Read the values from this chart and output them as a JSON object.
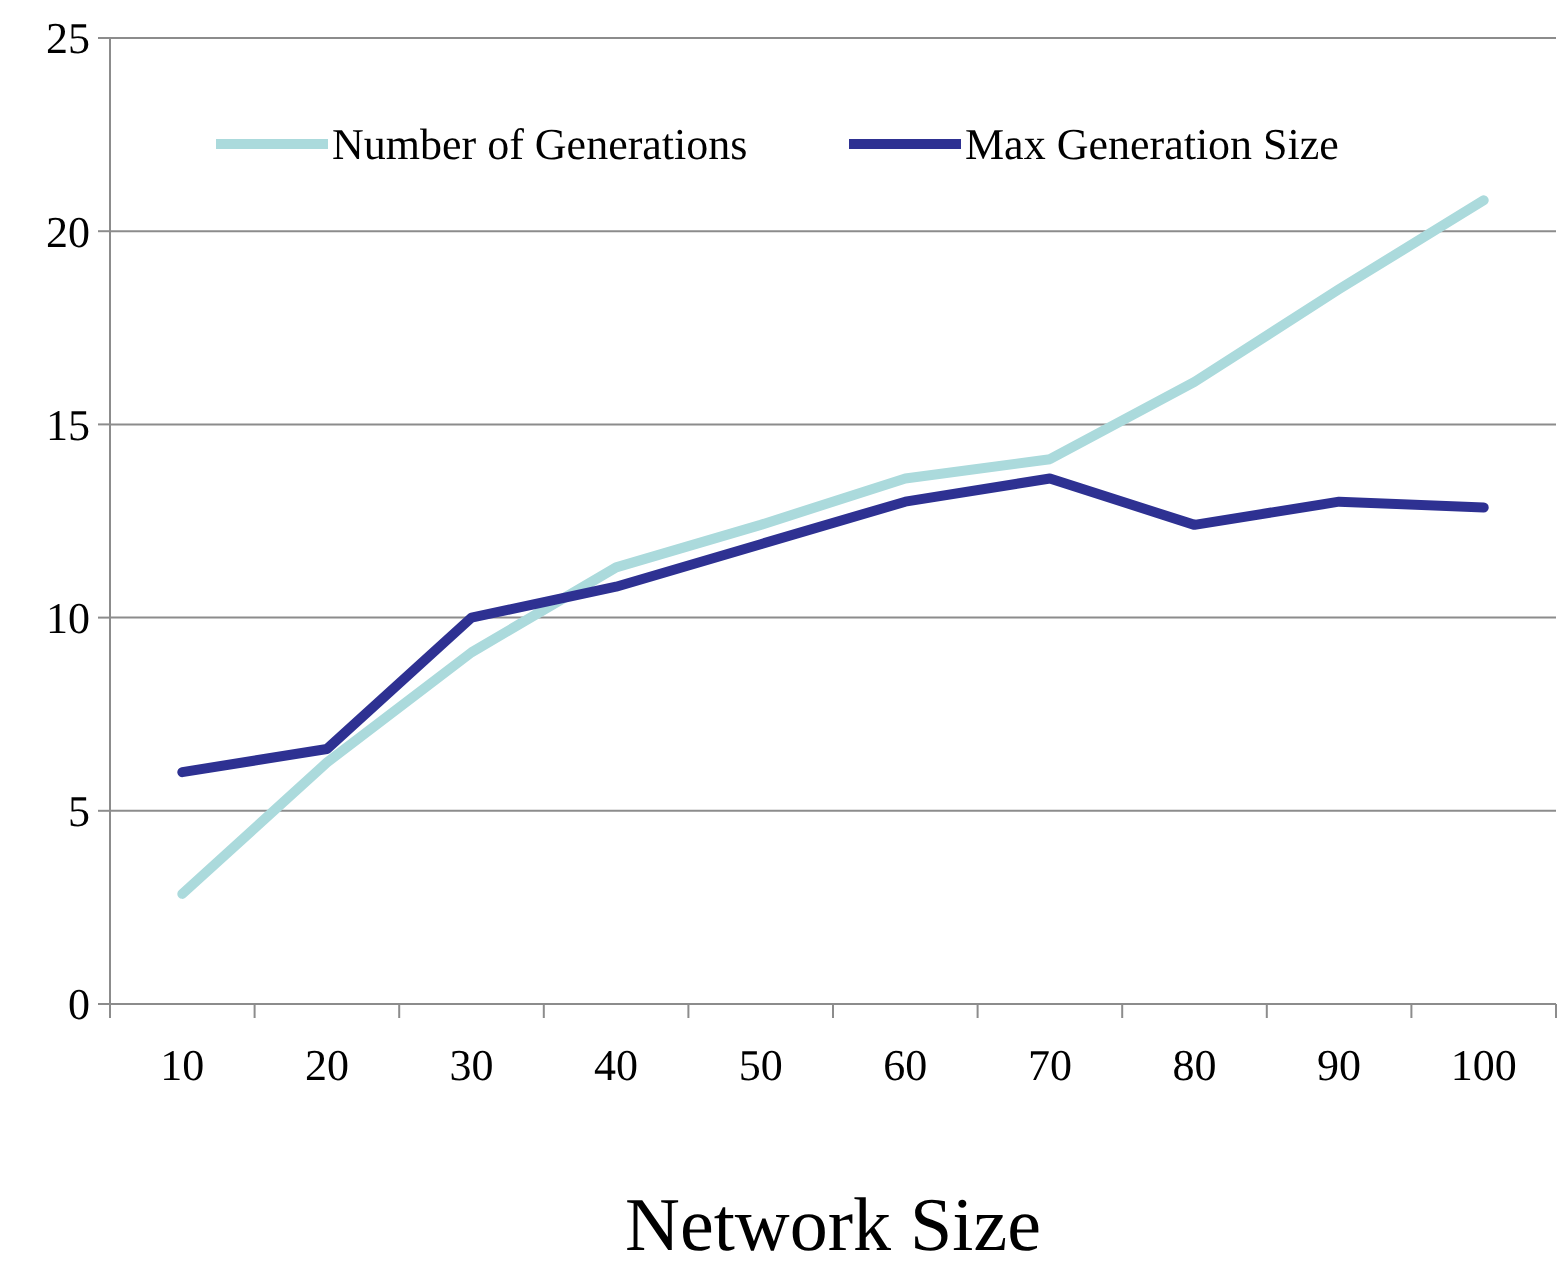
{
  "chart_data": {
    "type": "line",
    "xlabel": "Network Size",
    "categories": [
      "10",
      "20",
      "30",
      "40",
      "50",
      "60",
      "70",
      "80",
      "90",
      "100"
    ],
    "series": [
      {
        "name": "Number of Generations",
        "color": "#abdadc",
        "values": [
          2.85,
          6.25,
          9.1,
          11.3,
          12.4,
          13.6,
          14.1,
          16.1,
          18.5,
          20.8
        ]
      },
      {
        "name": "Max Generation Size",
        "color": "#2e3192",
        "values": [
          6.0,
          6.6,
          10.0,
          10.8,
          11.9,
          13.0,
          13.6,
          12.4,
          13.0,
          12.85
        ]
      }
    ],
    "ylim": [
      0,
      25
    ],
    "yticks": [
      0,
      5,
      10,
      15,
      20,
      25
    ],
    "grid": "y",
    "legend": "top",
    "marker": "none",
    "line_style": "solid"
  }
}
